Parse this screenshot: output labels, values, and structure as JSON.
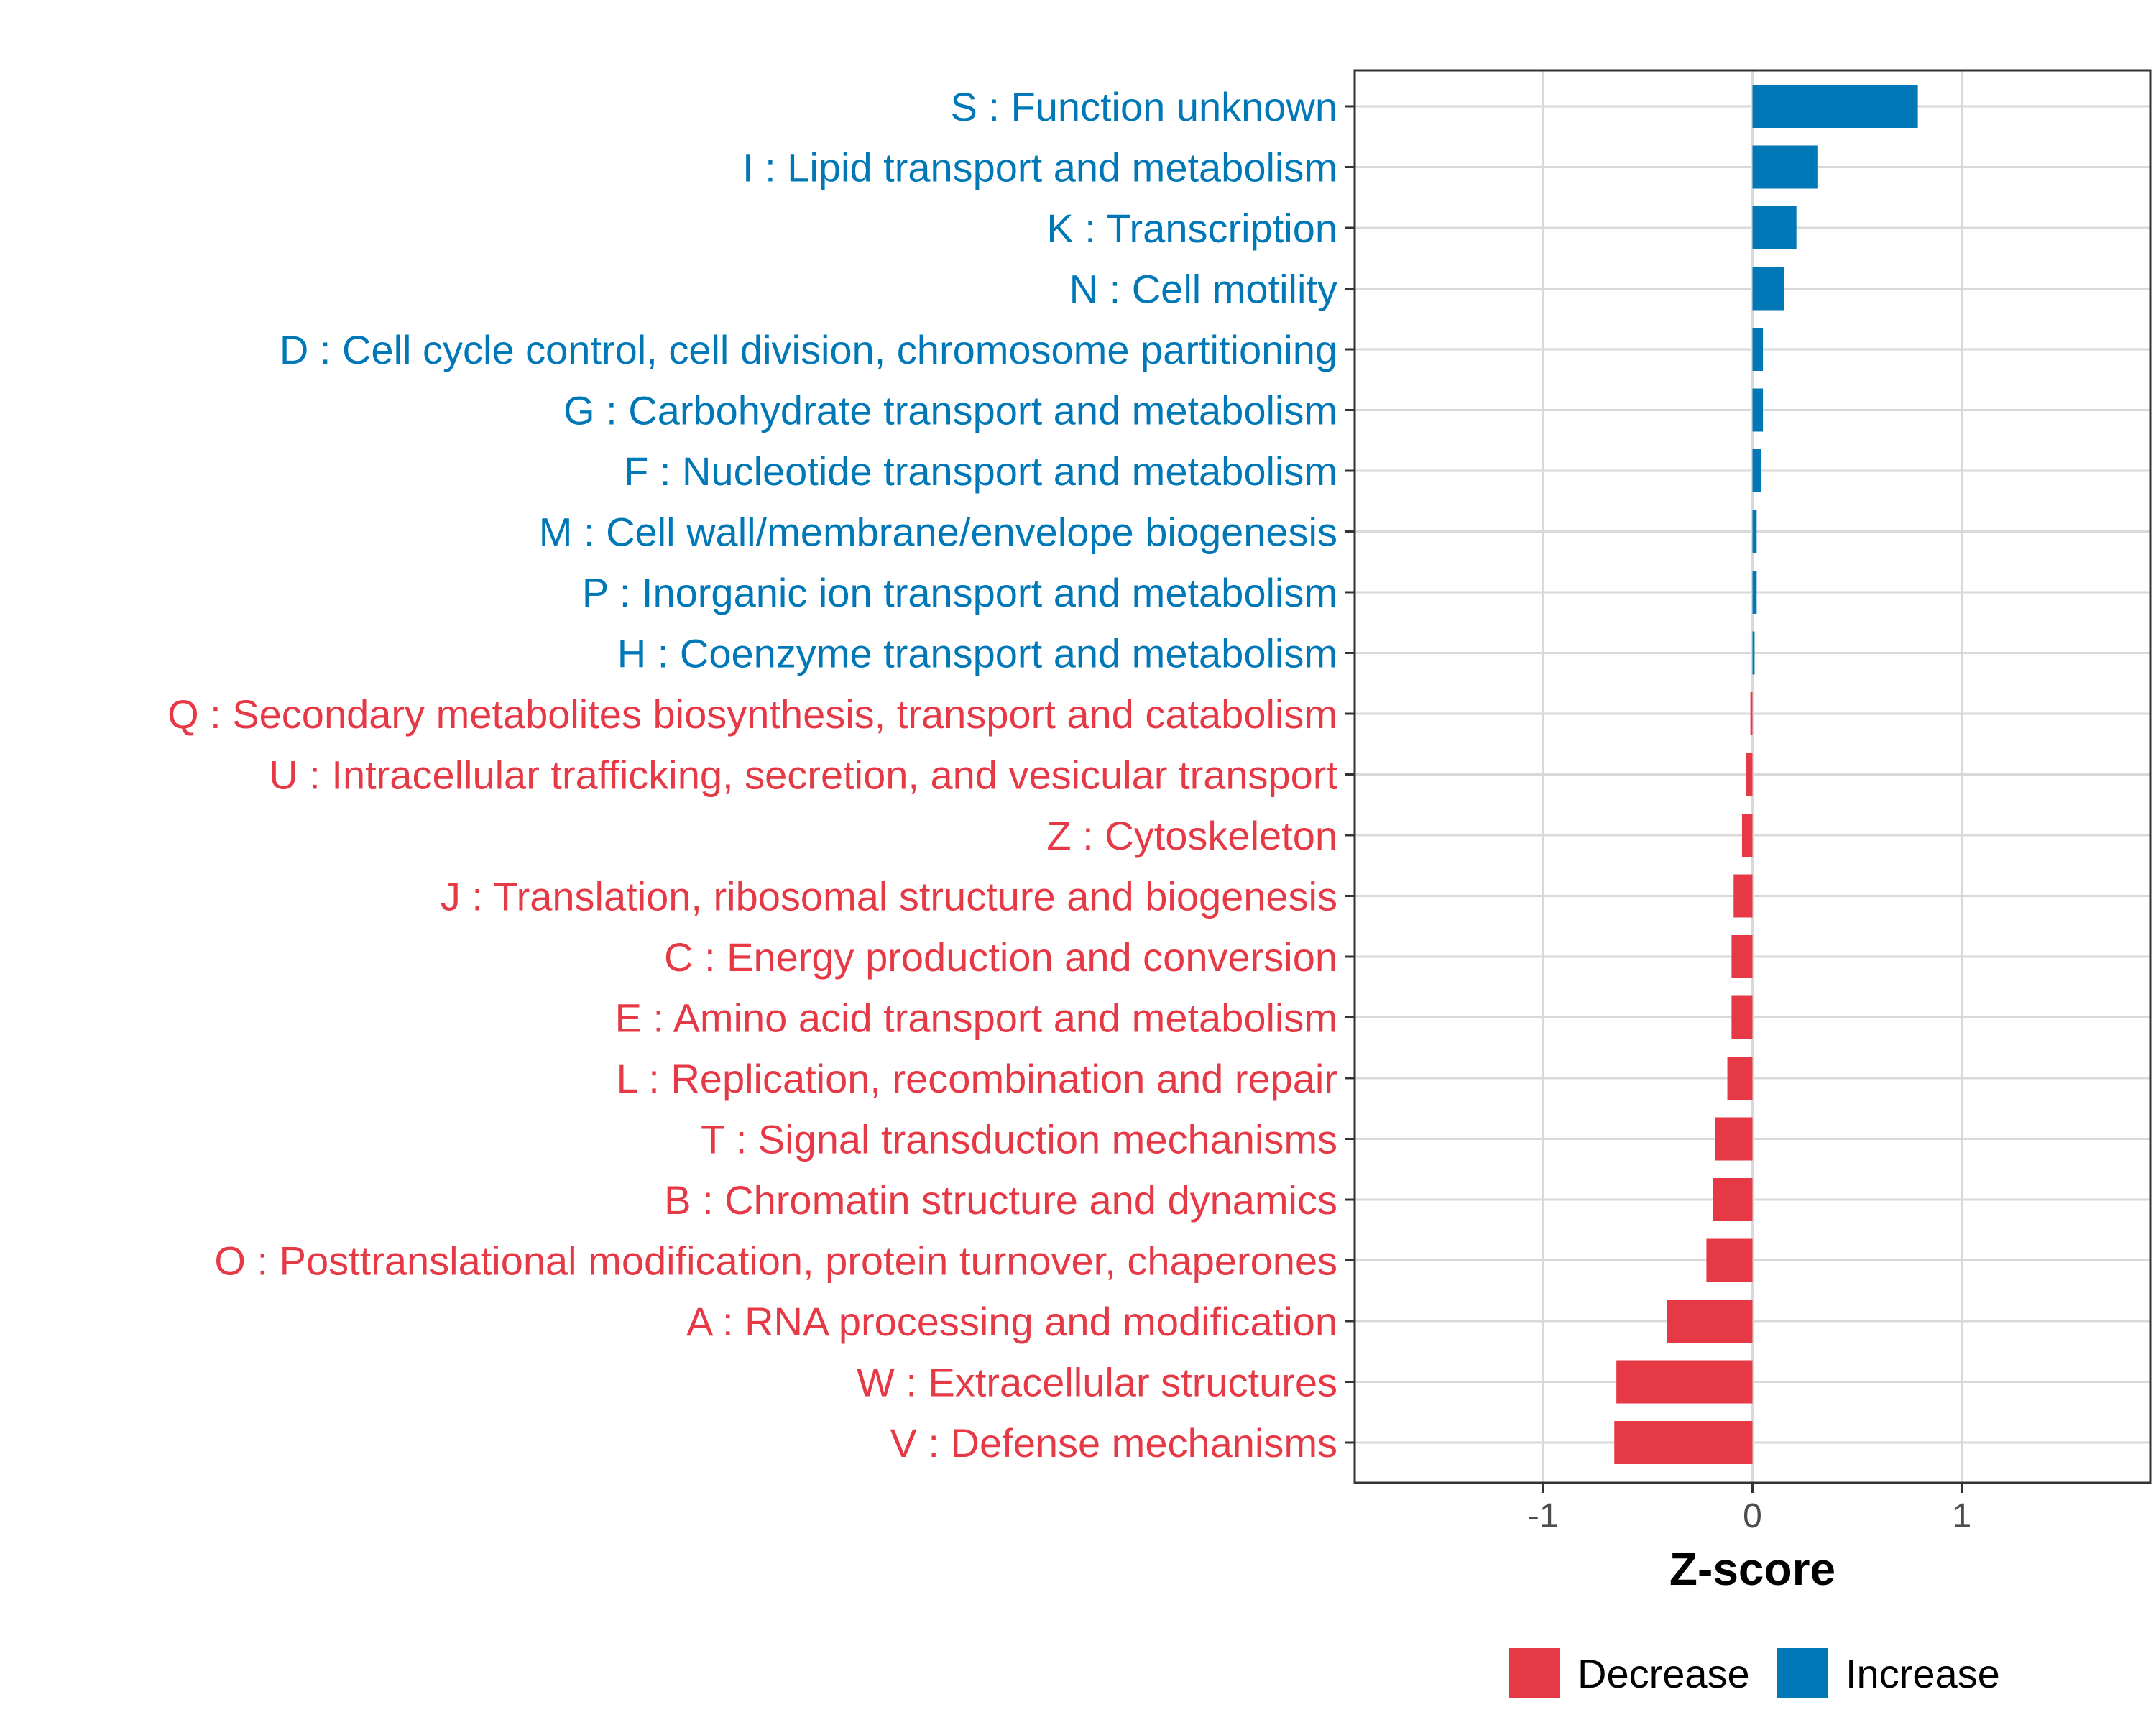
{
  "chart_data": {
    "type": "bar",
    "orientation": "horizontal",
    "xlabel": "Z-score",
    "ylabel": "",
    "xlim": [
      -1.9,
      1.9
    ],
    "x_ticks": [
      -1,
      0,
      1
    ],
    "x_tick_labels": [
      "-1",
      "0",
      "1"
    ],
    "grid": true,
    "legend_position": "bottom",
    "legend": [
      {
        "label": "Decrease",
        "color": "#e63946"
      },
      {
        "label": "Increase",
        "color": "#0077b6"
      }
    ],
    "categories": [
      "S : Function unknown",
      "I : Lipid transport and metabolism",
      "K : Transcription",
      "N : Cell motility",
      "D : Cell cycle control, cell division, chromosome partitioning",
      "G : Carbohydrate transport and metabolism",
      "F : Nucleotide transport and metabolism",
      "M : Cell wall/membrane/envelope biogenesis",
      "P : Inorganic ion transport and metabolism",
      "H : Coenzyme transport and metabolism",
      "Q : Secondary metabolites biosynthesis, transport and catabolism",
      "U : Intracellular trafficking, secretion, and vesicular transport",
      "Z : Cytoskeleton",
      "J : Translation, ribosomal structure and biogenesis",
      "C : Energy production and conversion",
      "E : Amino acid transport and metabolism",
      "L : Replication, recombination and repair",
      "T : Signal transduction mechanisms",
      "B : Chromatin structure and dynamics",
      "O : Posttranslational modification, protein turnover, chaperones",
      "A : RNA processing and modification",
      "W : Extracellular structures",
      "V : Defense mechanisms"
    ],
    "values": [
      0.79,
      0.31,
      0.21,
      0.15,
      0.05,
      0.05,
      0.04,
      0.02,
      0.02,
      0.01,
      -0.01,
      -0.03,
      -0.05,
      -0.09,
      -0.1,
      -0.1,
      -0.12,
      -0.18,
      -0.19,
      -0.22,
      -0.41,
      -0.65,
      -0.66
    ],
    "directions": [
      "Increase",
      "Increase",
      "Increase",
      "Increase",
      "Increase",
      "Increase",
      "Increase",
      "Increase",
      "Increase",
      "Increase",
      "Decrease",
      "Decrease",
      "Decrease",
      "Decrease",
      "Decrease",
      "Decrease",
      "Decrease",
      "Decrease",
      "Decrease",
      "Decrease",
      "Decrease",
      "Decrease",
      "Decrease"
    ]
  }
}
